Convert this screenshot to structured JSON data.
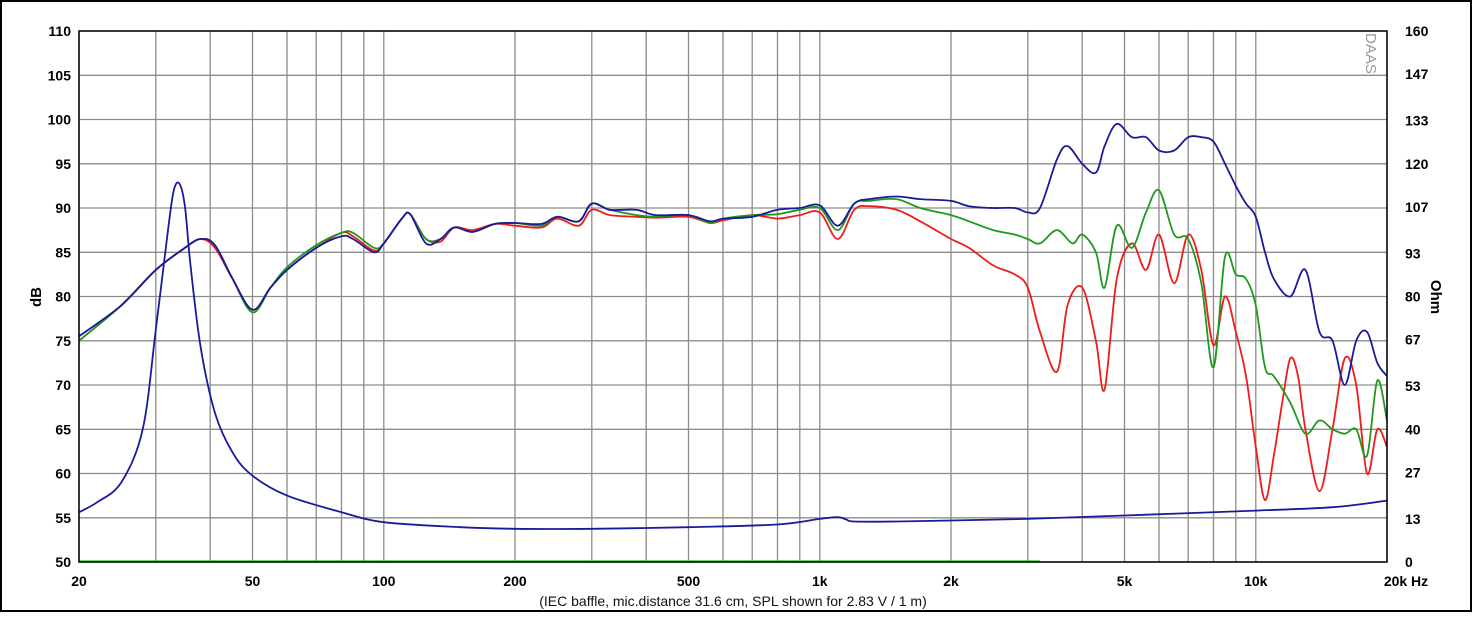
{
  "chart_data": {
    "type": "line",
    "xscale": "log",
    "xlim": [
      20,
      20000
    ],
    "ylim": [
      50,
      110
    ],
    "y2lim": [
      0,
      160
    ],
    "grid": true,
    "ylabel": "dB",
    "y2label": "Ohm",
    "caption": "(IEC baffle, mic.distance 31.6 cm, SPL shown for 2.83 V / 1 m)",
    "watermark": "DAAS",
    "x_ticks": [
      "20",
      "50",
      "100",
      "200",
      "500",
      "1k",
      "2k",
      "5k",
      "10k",
      "20k Hz"
    ],
    "x_tick_values": [
      20,
      50,
      100,
      200,
      500,
      1000,
      2000,
      5000,
      10000,
      20000
    ],
    "y_ticks": [
      "110",
      "105",
      "100",
      "95",
      "90",
      "85",
      "80",
      "75",
      "70",
      "65",
      "60",
      "55",
      "50"
    ],
    "y_tick_values": [
      110,
      105,
      100,
      95,
      90,
      85,
      80,
      75,
      70,
      65,
      60,
      55,
      50
    ],
    "y2_ticks": [
      "160",
      "147",
      "133",
      "120",
      "107",
      "93",
      "80",
      "67",
      "53",
      "40",
      "27",
      "13",
      "0"
    ],
    "y2_tick_values": [
      160,
      147,
      133,
      120,
      107,
      93,
      80,
      67,
      53,
      40,
      27,
      13,
      0
    ],
    "colors": {
      "background": "#ffffff",
      "grid": "#8c8c8c",
      "frame": "#000000",
      "red": "#ee1c1c",
      "green": "#1e9a1e",
      "blue": "#1a1a9c",
      "impedance": "#1a1a9c",
      "baseline": "#2fd22f"
    },
    "series": [
      {
        "key": "spl_red",
        "axis": "left",
        "color": "#ee1c1c",
        "x": [
          20,
          25,
          30,
          35,
          38,
          41,
          45,
          50,
          55,
          60,
          70,
          80,
          85,
          95,
          100,
          110,
          115,
          125,
          135,
          145,
          160,
          180,
          200,
          230,
          250,
          280,
          300,
          330,
          380,
          420,
          500,
          560,
          600,
          700,
          800,
          900,
          1000,
          1100,
          1200,
          1300,
          1500,
          1700,
          2000,
          2200,
          2500,
          2800,
          3000,
          3200,
          3500,
          3700,
          4000,
          4300,
          4500,
          4800,
          5200,
          5600,
          6000,
          6500,
          7000,
          7500,
          8000,
          8500,
          9000,
          9500,
          10000,
          10500,
          11000,
          11500,
          12000,
          12500,
          13000,
          14000,
          15000,
          16000,
          17000,
          18000,
          19000,
          20000
        ],
        "y": [
          75,
          79,
          83,
          85.5,
          86.5,
          85.5,
          82,
          78.5,
          81,
          83,
          85.5,
          87.2,
          86.8,
          85.2,
          86,
          88.8,
          89.3,
          86.5,
          86.2,
          87.8,
          87.5,
          88.2,
          88,
          87.8,
          88.8,
          88,
          89.8,
          89.2,
          89,
          88.9,
          89,
          88.3,
          88.6,
          89.2,
          88.8,
          89.2,
          89.5,
          86.5,
          89.8,
          90.2,
          89.8,
          88.5,
          86.5,
          85.5,
          83.5,
          82.5,
          81,
          76,
          71.5,
          79,
          81,
          75,
          69.5,
          82,
          86,
          83,
          87,
          81.5,
          87,
          83,
          74.5,
          80,
          76,
          71,
          63,
          57,
          62,
          68,
          73,
          71,
          65,
          58,
          65,
          73,
          70,
          60,
          65,
          63
        ]
      },
      {
        "key": "spl_green",
        "axis": "left",
        "color": "#1e9a1e",
        "x": [
          20,
          25,
          30,
          35,
          38,
          41,
          45,
          50,
          55,
          60,
          70,
          80,
          85,
          95,
          100,
          110,
          115,
          125,
          135,
          145,
          160,
          180,
          200,
          230,
          250,
          280,
          300,
          330,
          380,
          420,
          500,
          560,
          600,
          700,
          800,
          900,
          1000,
          1100,
          1200,
          1300,
          1500,
          1700,
          2000,
          2200,
          2500,
          2800,
          3000,
          3200,
          3500,
          3800,
          4000,
          4300,
          4500,
          4800,
          5200,
          5600,
          6000,
          6500,
          7000,
          7500,
          8000,
          8500,
          9000,
          9500,
          10000,
          10500,
          11000,
          12000,
          13000,
          14000,
          15000,
          16000,
          17000,
          18000,
          19000,
          20000
        ],
        "y": [
          75,
          79,
          83,
          85.5,
          86.5,
          85.8,
          82,
          78.2,
          81,
          83.3,
          85.8,
          87.2,
          87.2,
          85.5,
          86,
          88.8,
          89.3,
          86.5,
          86.5,
          87.8,
          87.3,
          88.2,
          88.3,
          88,
          89,
          88.5,
          90.5,
          89.8,
          89.2,
          89,
          89.2,
          88.3,
          88.8,
          89.2,
          89.3,
          89.8,
          90,
          87.5,
          90.5,
          90.8,
          91,
          90,
          89.2,
          88.5,
          87.5,
          87,
          86.5,
          86,
          87.5,
          86,
          87,
          85,
          81,
          88,
          85.5,
          89.5,
          92,
          87,
          86.5,
          81.5,
          72,
          84.5,
          82.5,
          82,
          79,
          72,
          71,
          68,
          64.5,
          66,
          65,
          64.5,
          65,
          62,
          70.5,
          66
        ]
      },
      {
        "key": "spl_blue",
        "axis": "left",
        "color": "#1a1a9c",
        "x": [
          20,
          25,
          30,
          35,
          38,
          41,
          45,
          50,
          55,
          60,
          70,
          80,
          85,
          95,
          100,
          110,
          115,
          125,
          135,
          145,
          160,
          180,
          200,
          230,
          250,
          280,
          300,
          330,
          380,
          420,
          500,
          560,
          600,
          700,
          800,
          900,
          1000,
          1100,
          1200,
          1300,
          1500,
          1700,
          2000,
          2200,
          2500,
          2800,
          3000,
          3200,
          3500,
          3700,
          4000,
          4300,
          4500,
          4800,
          5200,
          5600,
          6000,
          6500,
          7000,
          7500,
          8000,
          8500,
          9000,
          9500,
          10000,
          10500,
          11000,
          12000,
          13000,
          14000,
          15000,
          16000,
          17000,
          18000,
          19000,
          20000
        ],
        "y": [
          75.5,
          79,
          83,
          85.5,
          86.5,
          85.8,
          82,
          78.5,
          81,
          83,
          85.5,
          86.8,
          86.5,
          85,
          86,
          88.8,
          89.3,
          86,
          86.5,
          87.8,
          87.3,
          88.2,
          88.3,
          88.2,
          89,
          88.5,
          90.5,
          89.8,
          89.8,
          89.2,
          89.2,
          88.5,
          88.8,
          89,
          89.8,
          90,
          90.3,
          88,
          90.5,
          91,
          91.3,
          91,
          90.8,
          90.2,
          90,
          90,
          89.5,
          90,
          95.5,
          97,
          95,
          94,
          97,
          99.5,
          98,
          98,
          96.5,
          96.5,
          98,
          98,
          97.5,
          95,
          92.5,
          90.5,
          89,
          85,
          82,
          80,
          83,
          76,
          75,
          70,
          75,
          76,
          72.5,
          71
        ]
      },
      {
        "key": "impedance",
        "axis": "right",
        "color": "#1a1a9c",
        "x": [
          20,
          22,
          25,
          28,
          30,
          32,
          33,
          34,
          35,
          36,
          38,
          41,
          45,
          50,
          60,
          80,
          100,
          150,
          200,
          300,
          500,
          800,
          1000,
          1100,
          1150,
          1200,
          1500,
          2000,
          3000,
          5000,
          10000,
          15000,
          20000
        ],
        "y": [
          15,
          18,
          24,
          40,
          70,
          100,
          112,
          114,
          107,
          90,
          65,
          45,
          33,
          26,
          20,
          15,
          12,
          10.5,
          10,
          10,
          10.5,
          11.3,
          13,
          13.5,
          12.8,
          12.2,
          12.2,
          12.5,
          13,
          14,
          15.5,
          16.5,
          18.5
        ]
      }
    ],
    "baseline": {
      "x": [
        20,
        3200
      ],
      "y": 50
    }
  }
}
